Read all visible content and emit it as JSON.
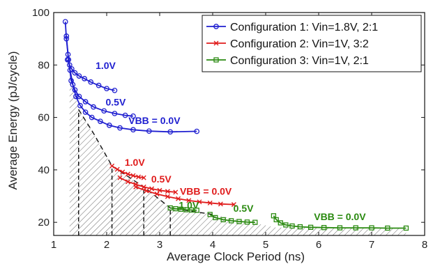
{
  "chart_data": {
    "type": "line",
    "title": "",
    "xlabel": "Average Clock Period (ns)",
    "ylabel": "Average Energy (pJ/cycle)",
    "xlim": [
      1,
      8
    ],
    "ylim": [
      15,
      100
    ],
    "xticks": [
      "1",
      "2",
      "3",
      "4",
      "5",
      "6",
      "7",
      "8"
    ],
    "yticks": [
      "20",
      "40",
      "60",
      "80",
      "100"
    ],
    "grid": false,
    "legend_position": "top-right",
    "legend": [
      {
        "name": "Configuration 1: Vin=1.8V, 2:1",
        "color": "#1f1fd0",
        "marker": "circle"
      },
      {
        "name": "Configuration 2: Vin=1V, 3:2",
        "color": "#e01b1b",
        "marker": "x"
      },
      {
        "name": "Configuration 3: Vin=1V, 2:1",
        "color": "#2a8a10",
        "marker": "square"
      }
    ],
    "series": [
      {
        "name": "Configuration 1: Vin=1.8V, 2:1",
        "group": 0,
        "label": "1.0V",
        "x": [
          1.26,
          1.3,
          1.34,
          1.4,
          1.48,
          1.58,
          1.7,
          1.85,
          2.0,
          2.15
        ],
        "y": [
          82.0,
          80.0,
          78.5,
          77.0,
          75.8,
          74.8,
          73.5,
          72.2,
          71.0,
          70.3
        ]
      },
      {
        "name": "Configuration 1: Vin=1.8V, 2:1",
        "group": 0,
        "label": "0.5V",
        "x": [
          1.24,
          1.28,
          1.33,
          1.4,
          1.48,
          1.6,
          1.75,
          1.95,
          2.15,
          2.35,
          2.5
        ],
        "y": [
          91.0,
          82.0,
          74.0,
          70.5,
          68.0,
          66.0,
          64.0,
          62.5,
          61.5,
          60.8,
          60.5
        ]
      },
      {
        "name": "Configuration 1: Vin=1.8V, 2:1",
        "group": 0,
        "label": "VBB = 0.0V",
        "x": [
          1.22,
          1.24,
          1.27,
          1.31,
          1.36,
          1.42,
          1.5,
          1.6,
          1.72,
          1.88,
          2.05,
          2.25,
          2.5,
          2.8,
          3.2,
          3.7
        ],
        "y": [
          96.5,
          90.0,
          84.0,
          78.0,
          72.5,
          68.0,
          64.5,
          62.0,
          60.0,
          58.5,
          57.0,
          56.0,
          55.3,
          54.8,
          54.5,
          54.7
        ]
      },
      {
        "name": "Configuration 2: Vin=1V, 3:2",
        "group": 1,
        "label": "1.0V",
        "x": [
          2.1,
          2.2,
          2.3,
          2.4,
          2.5,
          2.6,
          2.7
        ],
        "y": [
          41.5,
          40.2,
          39.2,
          38.4,
          37.8,
          37.3,
          37.0
        ]
      },
      {
        "name": "Configuration 2: Vin=1V, 3:2",
        "group": 1,
        "label": "0.5V",
        "x": [
          2.25,
          2.4,
          2.55,
          2.7,
          2.85,
          3.0,
          3.15,
          3.3
        ],
        "y": [
          37.0,
          35.5,
          34.5,
          33.5,
          32.8,
          32.2,
          31.8,
          31.5
        ]
      },
      {
        "name": "Configuration 2: Vin=1V, 3:2",
        "group": 1,
        "label": "VBB = 0.0V",
        "x": [
          2.55,
          2.75,
          2.95,
          3.15,
          3.35,
          3.55,
          3.75,
          3.95,
          4.15,
          4.4
        ],
        "y": [
          33.5,
          32.0,
          30.8,
          29.8,
          29.0,
          28.3,
          27.8,
          27.4,
          27.0,
          26.8
        ]
      },
      {
        "name": "Configuration 3: Vin=1V, 2:1",
        "group": 2,
        "label": "1.0V",
        "x": [
          3.2,
          3.3,
          3.4,
          3.5,
          3.6,
          3.7
        ],
        "y": [
          25.5,
          25.2,
          25.0,
          24.8,
          24.7,
          24.6
        ]
      },
      {
        "name": "Configuration 3: Vin=1V, 2:1",
        "group": 2,
        "label": "0.5V",
        "x": [
          3.95,
          4.05,
          4.2,
          4.35,
          4.5,
          4.65,
          4.8
        ],
        "y": [
          23.0,
          21.8,
          21.0,
          20.6,
          20.3,
          20.1,
          20.0
        ]
      },
      {
        "name": "Configuration 3: Vin=1V, 2:1",
        "group": 2,
        "label": "VBB = 0.0V",
        "x": [
          5.15,
          5.2,
          5.28,
          5.38,
          5.5,
          5.65,
          5.85,
          6.1,
          6.4,
          6.7,
          7.0,
          7.3,
          7.65
        ],
        "y": [
          22.5,
          21.0,
          19.8,
          19.0,
          18.6,
          18.3,
          18.1,
          18.0,
          17.9,
          17.9,
          17.9,
          17.8,
          17.8
        ]
      }
    ],
    "annotations": [
      {
        "text": "1.0V",
        "x": 1.98,
        "y": 78.5,
        "group": 0
      },
      {
        "text": "0.5V",
        "x": 2.17,
        "y": 64.5,
        "group": 0
      },
      {
        "text": "VBB = 0.0V",
        "x": 2.9,
        "y": 57.5,
        "group": 0
      },
      {
        "text": "1.0V",
        "x": 2.53,
        "y": 41.5,
        "group": 1
      },
      {
        "text": "0.5V",
        "x": 3.03,
        "y": 35.2,
        "group": 1
      },
      {
        "text": "VBB = 0.0V",
        "x": 3.87,
        "y": 30.5,
        "group": 1
      },
      {
        "text": "1.0V",
        "x": 3.55,
        "y": 25.2,
        "group": 2
      },
      {
        "text": "0.5V",
        "x": 4.58,
        "y": 24.0,
        "group": 2
      },
      {
        "text": "VBB = 0.0V",
        "x": 6.4,
        "y": 20.8,
        "group": 2
      }
    ],
    "pareto_frontier": {
      "x": [
        1.3,
        1.47,
        1.75,
        2.1,
        2.7,
        3.2,
        4.0,
        5.2,
        7.65
      ],
      "y": [
        80.0,
        63.0,
        54.0,
        41.5,
        33.5,
        25.5,
        23.0,
        18.0,
        17.8
      ]
    },
    "hatched_region_floor_y": 15,
    "dashed_verticals_x": [
      1.47,
      2.1,
      2.7,
      3.2
    ]
  }
}
